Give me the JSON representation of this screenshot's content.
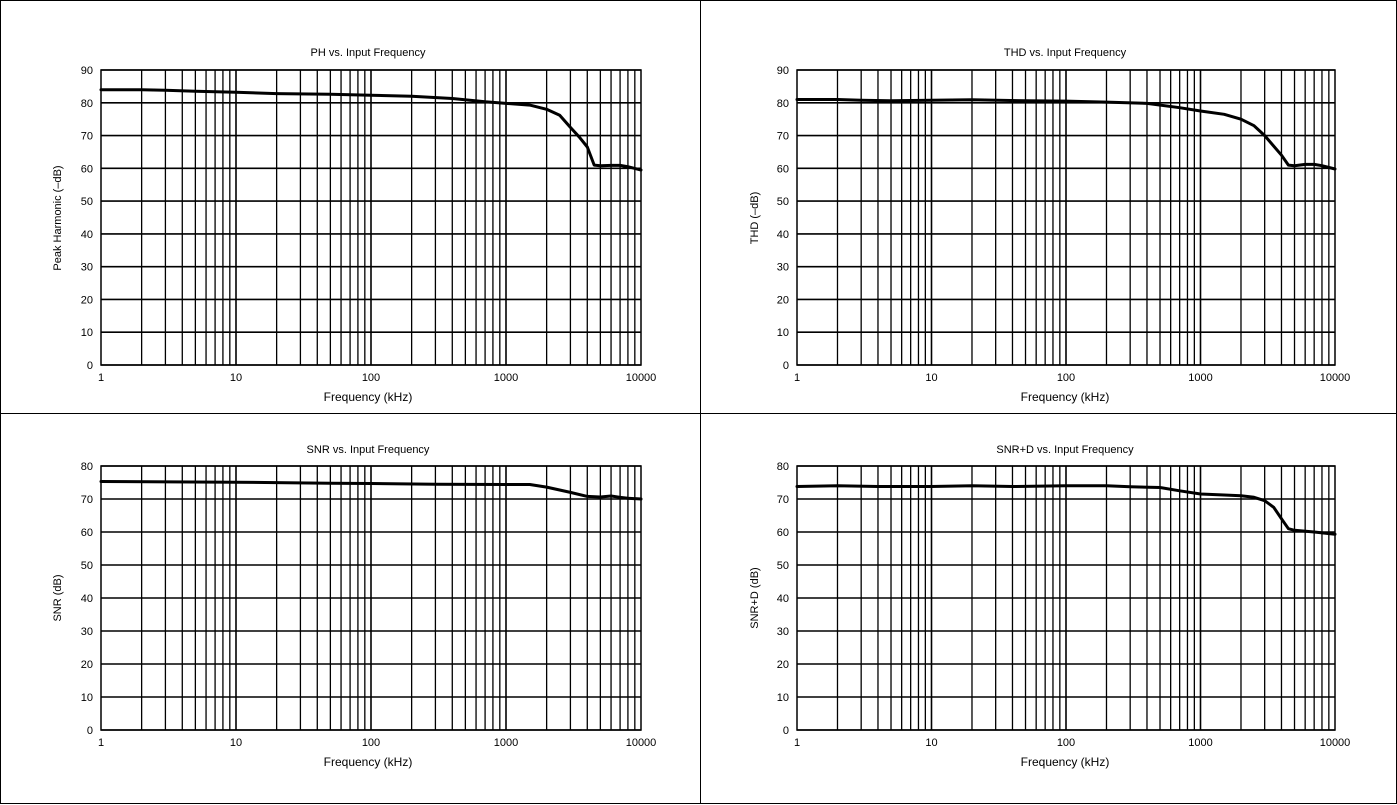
{
  "chart_data": [
    {
      "type": "line",
      "title": "PH vs. Input Frequency",
      "xlabel": "Frequency (kHz)",
      "ylabel": "Peak Harmonic (–dB)",
      "xscale": "log",
      "xlim": [
        1,
        10000
      ],
      "ylim": [
        0,
        90
      ],
      "x_ticks": [
        "1",
        "10",
        "100",
        "1000",
        "10000"
      ],
      "y_ticks": [
        "0",
        "10",
        "20",
        "30",
        "40",
        "50",
        "60",
        "70",
        "80",
        "90"
      ],
      "grid": true,
      "x": [
        1,
        2,
        3,
        5,
        10,
        20,
        50,
        100,
        200,
        400,
        700,
        1000,
        1500,
        2000,
        2500,
        3000,
        3500,
        4000,
        4500,
        5000,
        6000,
        7000,
        8000,
        10000
      ],
      "values": [
        84,
        84,
        83.8,
        83.5,
        83.2,
        82.8,
        82.6,
        82.3,
        82,
        81.3,
        80.3,
        79.8,
        79.3,
        78,
        76.2,
        72.5,
        69.5,
        66.5,
        61,
        60.8,
        60.9,
        60.9,
        60.5,
        59.5
      ]
    },
    {
      "type": "line",
      "title": "THD vs. Input Frequency",
      "xlabel": "Frequency (kHz)",
      "ylabel": "THD (–dB)",
      "xscale": "log",
      "xlim": [
        1,
        10000
      ],
      "ylim": [
        0,
        90
      ],
      "x_ticks": [
        "1",
        "10",
        "100",
        "1000",
        "10000"
      ],
      "y_ticks": [
        "0",
        "10",
        "20",
        "30",
        "40",
        "50",
        "60",
        "70",
        "80",
        "90"
      ],
      "grid": true,
      "x": [
        1,
        2,
        3,
        5,
        10,
        20,
        50,
        100,
        200,
        400,
        700,
        1000,
        1500,
        2000,
        2500,
        3000,
        4000,
        4500,
        5000,
        6000,
        7000,
        8000,
        10000
      ],
      "values": [
        81,
        81,
        80.8,
        80.6,
        80.8,
        80.9,
        80.6,
        80.5,
        80.2,
        79.8,
        78.5,
        77.5,
        76.5,
        75,
        73,
        70,
        64,
        61,
        60.8,
        61.2,
        61.2,
        60.8,
        59.8
      ]
    },
    {
      "type": "line",
      "title": "SNR vs. Input Frequency",
      "xlabel": "Frequency (kHz)",
      "ylabel": "SNR (dB)",
      "xscale": "log",
      "xlim": [
        1,
        10000
      ],
      "ylim": [
        0,
        80
      ],
      "x_ticks": [
        "1",
        "10",
        "100",
        "1000",
        "10000"
      ],
      "y_ticks": [
        "0",
        "10",
        "20",
        "30",
        "40",
        "50",
        "60",
        "70",
        "80"
      ],
      "grid": true,
      "x": [
        1,
        10,
        50,
        100,
        300,
        1000,
        1500,
        2000,
        3000,
        4000,
        5000,
        6000,
        7000,
        8000,
        10000
      ],
      "values": [
        75.3,
        75.1,
        74.8,
        74.7,
        74.5,
        74.4,
        74.4,
        73.6,
        72,
        70.8,
        70.6,
        70.9,
        70.5,
        70.2,
        70
      ]
    },
    {
      "type": "line",
      "title": "SNR+D vs. Input Frequency",
      "xlabel": "Frequency (kHz)",
      "ylabel": "SNR+D (dB)",
      "xscale": "log",
      "xlim": [
        1,
        10000
      ],
      "ylim": [
        0,
        80
      ],
      "x_ticks": [
        "1",
        "10",
        "100",
        "1000",
        "10000"
      ],
      "y_ticks": [
        "0",
        "10",
        "20",
        "30",
        "40",
        "50",
        "60",
        "70",
        "80"
      ],
      "grid": true,
      "x": [
        1,
        2,
        4,
        10,
        20,
        40,
        100,
        200,
        300,
        500,
        700,
        1000,
        1500,
        2000,
        2500,
        3000,
        3500,
        4000,
        4500,
        5000,
        7000,
        10000
      ],
      "values": [
        73.8,
        74,
        73.8,
        73.8,
        74,
        73.8,
        74,
        74,
        73.7,
        73.5,
        72.5,
        71.5,
        71.2,
        71,
        70.5,
        69.5,
        67.5,
        64,
        61,
        60.5,
        60,
        59.3
      ]
    }
  ]
}
